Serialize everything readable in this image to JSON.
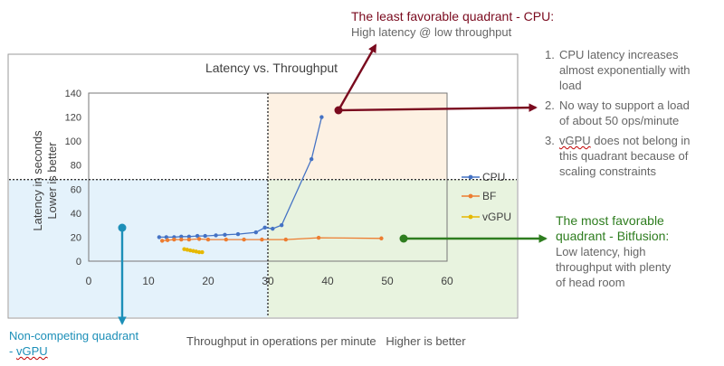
{
  "colors": {
    "cpu": "#4472c4",
    "bf": "#ed7d31",
    "vgpu": "#e6b800",
    "callout_cpu": "#7a0a1e",
    "callout_bitfusion": "#2e7d1f",
    "callout_vgpu": "#1c8fb8",
    "quadrant_high_latency": "#fdf1e3",
    "quadrant_low_latency_right": "#e8f3df",
    "quadrant_low_latency_left": "#e4f2fb"
  },
  "chart_data": {
    "type": "line",
    "title": "Latency vs. Throughput",
    "ylabel_line1": "Latency in seconds",
    "ylabel_line2": "Lower is better",
    "xlim": [
      0,
      60
    ],
    "ylim": [
      0,
      140
    ],
    "xticks": [
      0,
      10,
      20,
      30,
      40,
      50,
      60
    ],
    "yticks": [
      0,
      20,
      40,
      60,
      80,
      100,
      120,
      140
    ],
    "grid": false,
    "legend_position": "right",
    "quadrant_divider_x": 30,
    "quadrant_divider_y": 68,
    "series": [
      {
        "name": "CPU",
        "x": [
          11.8,
          13,
          14.3,
          15.5,
          16.8,
          18.2,
          19.5,
          21.3,
          22.8,
          25,
          28,
          29.5,
          30.8,
          32.3,
          37.3,
          39
        ],
        "y": [
          20,
          20,
          20,
          20.5,
          20.5,
          21,
          21,
          21.5,
          22,
          22.5,
          24,
          28,
          27,
          30,
          85,
          120
        ]
      },
      {
        "name": "BF",
        "x": [
          12.3,
          13.2,
          14.3,
          15.5,
          16.8,
          18.5,
          20,
          23,
          26,
          29,
          33,
          38.5,
          49
        ],
        "y": [
          17,
          17.5,
          18,
          18,
          18,
          18.5,
          18,
          18,
          18,
          18,
          18,
          19.5,
          19
        ]
      },
      {
        "name": "vGPU",
        "x": [
          16,
          16.5,
          17,
          17.5,
          18,
          18.5,
          19
        ],
        "y": [
          10,
          9.5,
          9,
          8.5,
          8,
          7.5,
          7.5
        ]
      }
    ]
  },
  "callouts": {
    "cpu_title": "The least favorable quadrant - CPU:",
    "cpu_body": "High latency @ low throughput",
    "bitfusion_title_line1": "The most favorable",
    "bitfusion_title_line2": "quadrant - Bitfusion:",
    "bitfusion_body_line1": "Low latency, high",
    "bitfusion_body_line2": "throughput with plenty",
    "bitfusion_body_line3": "of head room",
    "vgpu_line1": "Non-competing quadrant",
    "vgpu_line2_prefix": "- ",
    "vgpu_line2_word": "vGPU"
  },
  "notes": [
    {
      "num": "1.",
      "lines": [
        "CPU latency increases",
        "almost exponentially with",
        "load"
      ]
    },
    {
      "num": "2.",
      "lines": [
        "No way to support a load",
        "of about 50 ops/minute"
      ]
    },
    {
      "num": "3.",
      "lines_prefix": "",
      "underlined_word": "vGPU",
      "first_line_rest": " does not belong in",
      "lines_after": [
        "this quadrant because of",
        "scaling constraints"
      ]
    }
  ],
  "bottom_caption": "Throughput in operations per minute   Higher is better"
}
